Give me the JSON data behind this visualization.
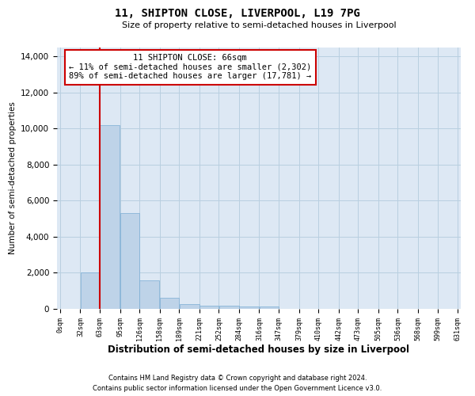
{
  "title": "11, SHIPTON CLOSE, LIVERPOOL, L19 7PG",
  "subtitle": "Size of property relative to semi-detached houses in Liverpool",
  "xlabel": "Distribution of semi-detached houses by size in Liverpool",
  "ylabel": "Number of semi-detached properties",
  "footer_line1": "Contains HM Land Registry data © Crown copyright and database right 2024.",
  "footer_line2": "Contains public sector information licensed under the Open Government Licence v3.0.",
  "annotation_line1": "11 SHIPTON CLOSE: 66sqm",
  "annotation_line2": "← 11% of semi-detached houses are smaller (2,302)",
  "annotation_line3": "89% of semi-detached houses are larger (17,781) →",
  "property_bin_edge": 63,
  "bar_color": "#bed3e8",
  "bar_edgecolor": "#7aadd4",
  "vline_color": "#cc0000",
  "annotation_box_edgecolor": "#cc0000",
  "background_color": "#ffffff",
  "axes_facecolor": "#dde8f4",
  "grid_color": "#b8cfe0",
  "bin_edges": [
    0,
    32,
    63,
    95,
    126,
    158,
    189,
    221,
    252,
    284,
    316,
    347,
    379,
    410,
    442,
    473,
    505,
    536,
    568,
    599,
    631
  ],
  "bar_heights": [
    0,
    2000,
    10200,
    5300,
    1600,
    620,
    280,
    160,
    160,
    130,
    130,
    0,
    0,
    0,
    0,
    0,
    0,
    0,
    0,
    0
  ],
  "ylim": [
    0,
    14500
  ],
  "yticks": [
    0,
    2000,
    4000,
    6000,
    8000,
    10000,
    12000,
    14000
  ]
}
